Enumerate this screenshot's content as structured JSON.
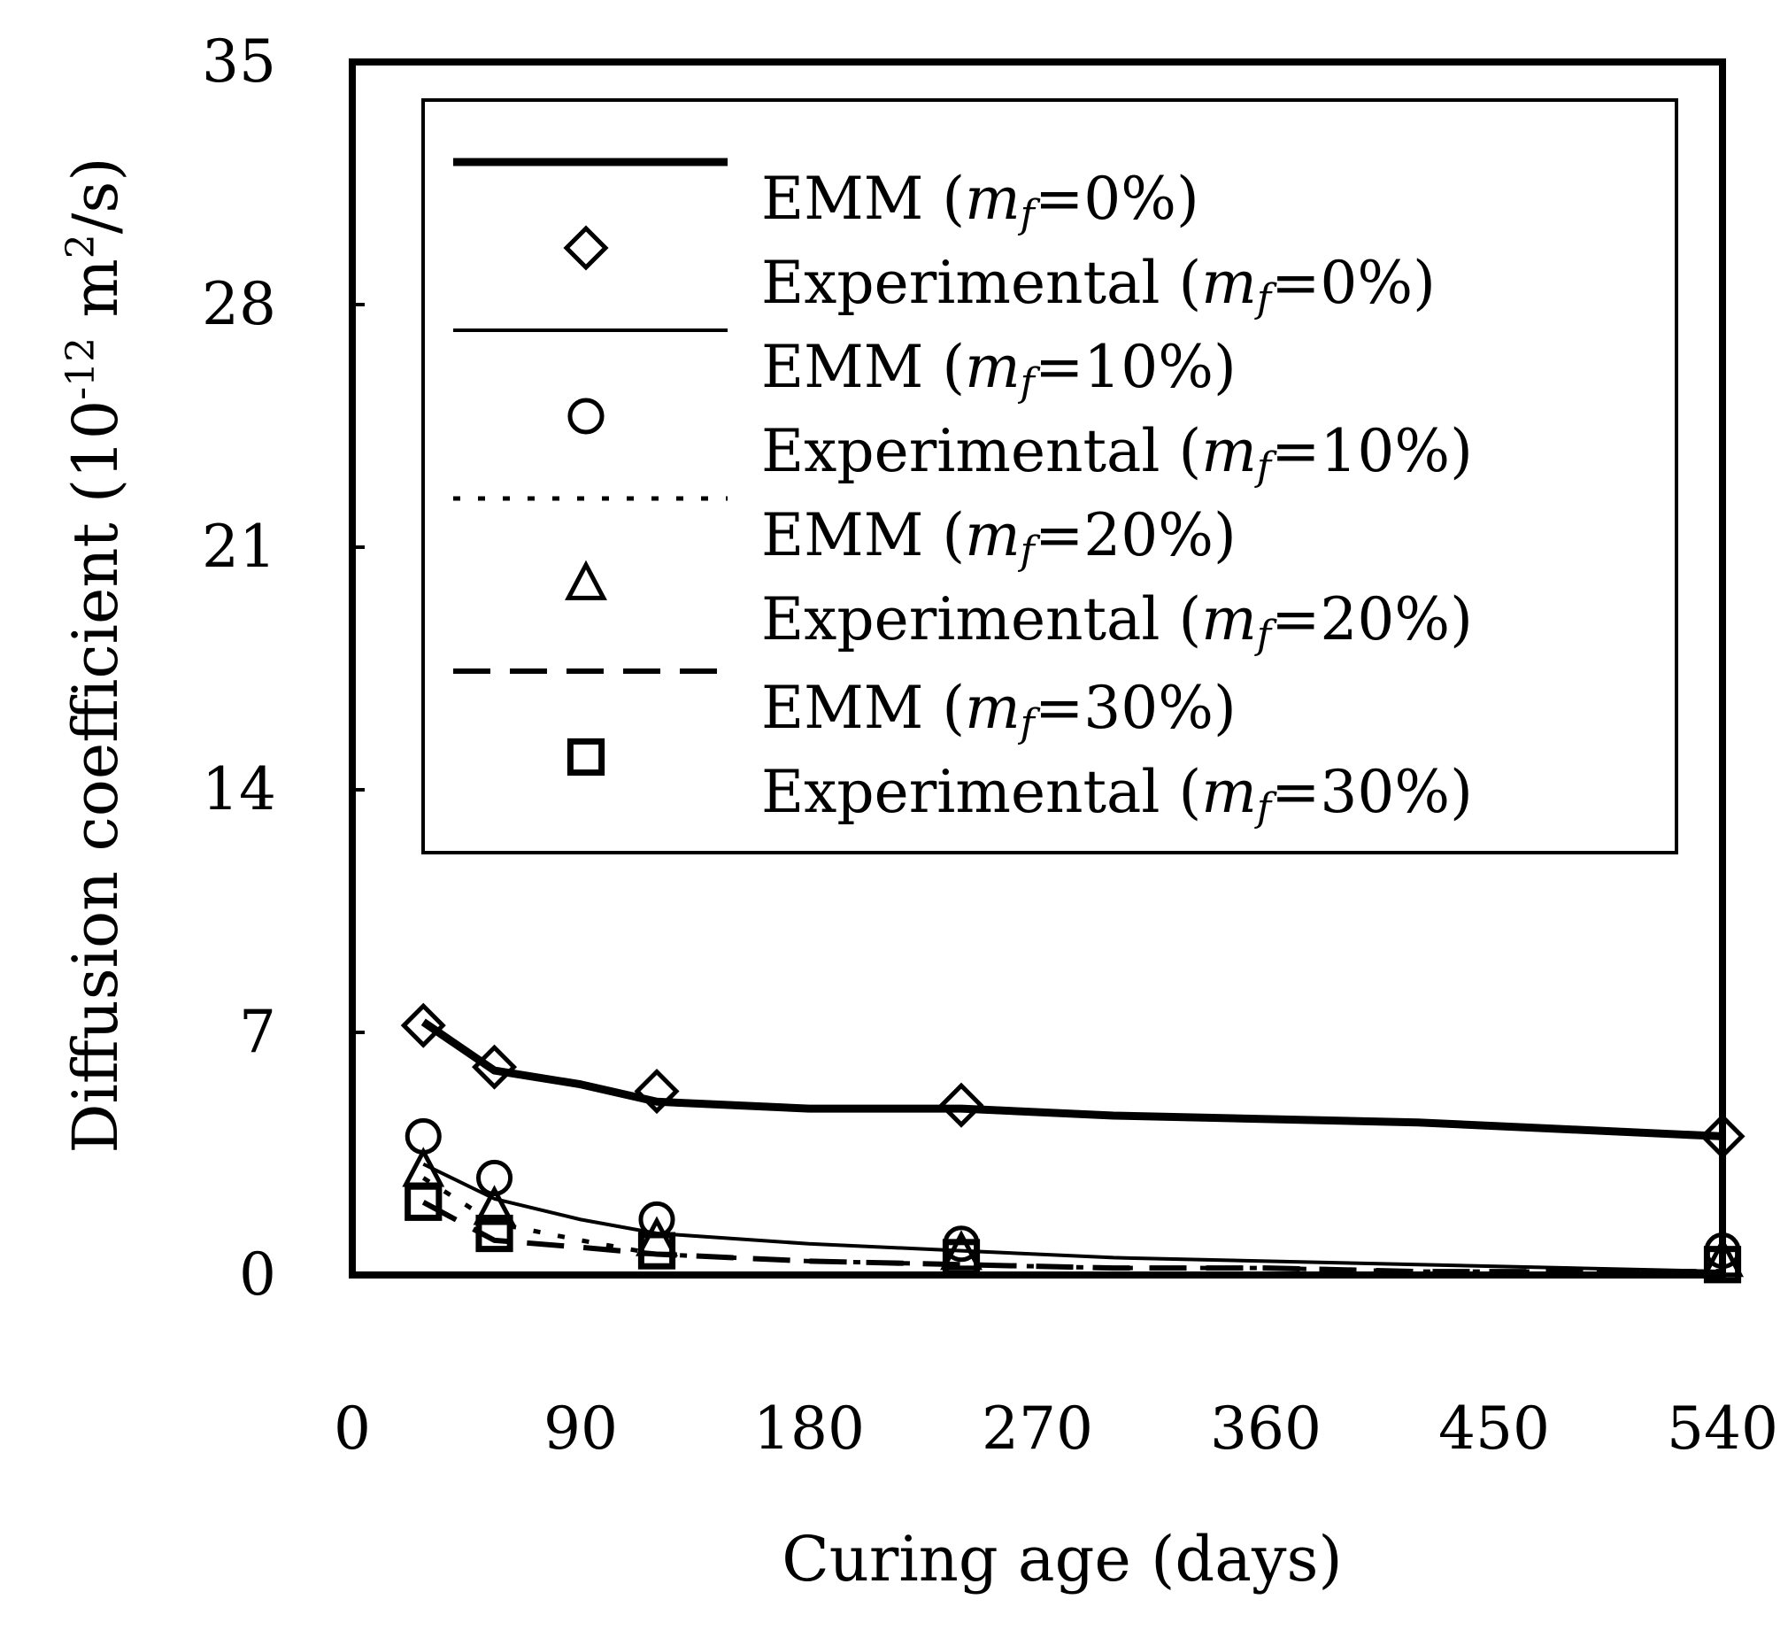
{
  "chart_data": {
    "type": "line",
    "xlabel": "Curing age (days)",
    "ylabel": {
      "base": "Diffusion coefficient (10",
      "exp1": "-12",
      "mid": " m",
      "exp2": "2",
      "end": "/s)"
    },
    "xlim": [
      0,
      540
    ],
    "ylim": [
      0,
      35
    ],
    "xticks": [
      0,
      90,
      180,
      270,
      360,
      450,
      540
    ],
    "yticks": [
      0,
      7,
      14,
      21,
      28,
      35
    ],
    "grid": false,
    "legend_position": "top-right",
    "series": [
      {
        "name": "EMM (mf=0%)",
        "label_prefix": "EMM (",
        "label_var": "m",
        "label_sub": "f",
        "label_suffix": "=0%)",
        "kind": "line",
        "style": "solid-thick",
        "x": [
          28,
          56,
          90,
          120,
          180,
          240,
          300,
          360,
          420,
          480,
          540
        ],
        "y": [
          7.3,
          5.9,
          5.5,
          5.0,
          4.8,
          4.8,
          4.6,
          4.5,
          4.4,
          4.2,
          4.0
        ]
      },
      {
        "name": "Experimental (mf=0%)",
        "label_prefix": "Experimental (",
        "label_var": "m",
        "label_sub": "f",
        "label_suffix": "=0%)",
        "kind": "marker",
        "marker": "diamond",
        "x": [
          28,
          56,
          120,
          240,
          540
        ],
        "y": [
          7.2,
          6.0,
          5.3,
          4.9,
          4.0
        ]
      },
      {
        "name": "EMM (mf=10%)",
        "label_prefix": "EMM (",
        "label_var": "m",
        "label_sub": "f",
        "label_suffix": "=10%)",
        "kind": "line",
        "style": "solid-thin",
        "x": [
          28,
          56,
          90,
          120,
          180,
          240,
          300,
          360,
          420,
          480,
          540
        ],
        "y": [
          3.2,
          2.2,
          1.6,
          1.2,
          0.9,
          0.7,
          0.5,
          0.4,
          0.3,
          0.2,
          0.1
        ]
      },
      {
        "name": "Experimental (mf=10%)",
        "label_prefix": "Experimental (",
        "label_var": "m",
        "label_sub": "f",
        "label_suffix": "=10%)",
        "kind": "marker",
        "marker": "circle",
        "x": [
          28,
          56,
          120,
          240,
          540
        ],
        "y": [
          4.0,
          2.8,
          1.6,
          0.9,
          0.7
        ]
      },
      {
        "name": "EMM (mf=20%)",
        "label_prefix": "EMM (",
        "label_var": "m",
        "label_sub": "f",
        "label_suffix": "=20%)",
        "kind": "line",
        "style": "dotted",
        "x": [
          28,
          56,
          90,
          120,
          180,
          240,
          300,
          360,
          420,
          480,
          540
        ],
        "y": [
          2.8,
          1.5,
          1.0,
          0.6,
          0.4,
          0.3,
          0.2,
          0.2,
          0.1,
          0.1,
          0.1
        ]
      },
      {
        "name": "Experimental (mf=20%)",
        "label_prefix": "Experimental (",
        "label_var": "m",
        "label_sub": "f",
        "label_suffix": "=20%)",
        "kind": "marker",
        "marker": "triangle",
        "x": [
          28,
          56,
          120,
          240,
          540
        ],
        "y": [
          3.0,
          1.9,
          1.0,
          0.6,
          0.4
        ]
      },
      {
        "name": "EMM (mf=30%)",
        "label_prefix": "EMM (",
        "label_var": "m",
        "label_sub": "f",
        "label_suffix": "=30%)",
        "kind": "line",
        "style": "dashed",
        "x": [
          28,
          56,
          90,
          120,
          180,
          240,
          300,
          360,
          420,
          480,
          540
        ],
        "y": [
          2.1,
          1.0,
          0.8,
          0.6,
          0.4,
          0.3,
          0.2,
          0.2,
          0.1,
          0.1,
          0.1
        ]
      },
      {
        "name": "Experimental (mf=30%)",
        "label_prefix": "Experimental (",
        "label_var": "m",
        "label_sub": "f",
        "label_suffix": "=30%)",
        "kind": "marker",
        "marker": "square",
        "x": [
          28,
          56,
          120,
          240,
          540
        ],
        "y": [
          2.1,
          1.2,
          0.7,
          0.5,
          0.3
        ]
      }
    ]
  }
}
